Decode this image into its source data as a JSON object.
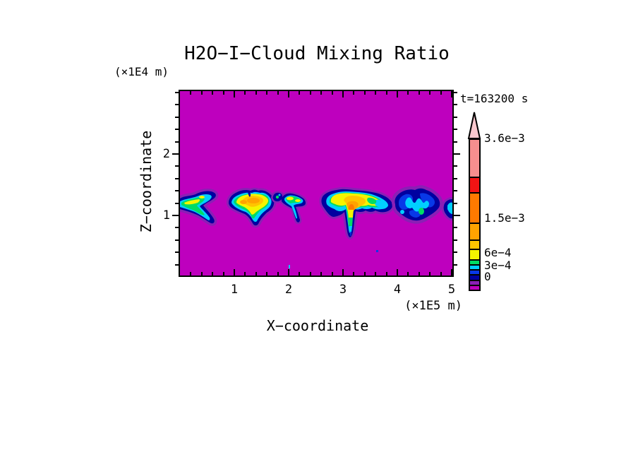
{
  "title": "H2O−I−Cloud Mixing Ratio",
  "timestamp": "t=163200 s",
  "axes": {
    "x": {
      "label": "X−coordinate",
      "unit": "(×1E5 m)",
      "tick_labels": [
        "1",
        "2",
        "3",
        "4",
        "5"
      ]
    },
    "z": {
      "label": "Z−coordinate",
      "unit": "(×1E4 m)",
      "tick_labels": [
        "1",
        "2"
      ]
    }
  },
  "colorbar": {
    "tick_labels": [
      "3.6e−3",
      "1.5e−3",
      "6e−4",
      "3e−4",
      "0"
    ],
    "arrow_color": "#FAC8CE",
    "segments": [
      {
        "color": "#F68E8E",
        "h": 52
      },
      {
        "color": "#F21414",
        "h": 22
      },
      {
        "color": "#FF7A00",
        "h": 43
      },
      {
        "color": "#FFA300",
        "h": 24
      },
      {
        "color": "#FFC400",
        "h": 13
      },
      {
        "color": "#F4F400",
        "h": 15
      },
      {
        "color": "#00DC64",
        "h": 7
      },
      {
        "color": "#00CFFF",
        "h": 7
      },
      {
        "color": "#0838E8",
        "h": 7
      },
      {
        "color": "#0000A0",
        "h": 8
      },
      {
        "color": "#8A1FB5",
        "h": 7
      },
      {
        "color": "#BE00BE",
        "h": 7
      }
    ]
  },
  "chart_data": {
    "type": "heatmap",
    "title": "H2O−I−Cloud Mixing Ratio",
    "time_annotation": "t=163200 s",
    "xlabel": "X−coordinate",
    "x_unit": "(×1E5 m)",
    "ylabel": "Z−coordinate",
    "y_unit": "(×1E4 m)",
    "xlim": [
      0,
      5.05
    ],
    "ylim": [
      0,
      3.0
    ],
    "x_major_ticks": [
      1,
      2,
      3,
      4,
      5
    ],
    "y_major_ticks": [
      1,
      2
    ],
    "minor_tick_step": 0.2,
    "grid": false,
    "legend_position": "right-colorbar-with-overflow-arrow",
    "background_color": "#BE00BE",
    "background_value": 0,
    "colorbar_tick_labels": [
      "3.6e−3",
      "1.5e−3",
      "6e−4",
      "3e−4",
      "0"
    ],
    "clouds": [
      {
        "x_range": [
          0.0,
          0.75
        ],
        "z_range": [
          0.95,
          1.55
        ],
        "peak_mixing_ratio": "~7e−4",
        "description": "left-edge chevron-shaped cloud, cyan-green body with thin yellow streak"
      },
      {
        "x_range": [
          0.85,
          1.75
        ],
        "z_range": [
          0.9,
          1.6
        ],
        "peak_mixing_ratio": "~1.2e−3",
        "description": "rounded cloud, yellow interior with amber-orange core, drooping base"
      },
      {
        "x_range": [
          1.75,
          2.32
        ],
        "z_range": [
          1.0,
          1.55
        ],
        "peak_mixing_ratio": "~7e−4",
        "description": "thin wavy cloud with small downward hook"
      },
      {
        "x_range": [
          2.6,
          3.95
        ],
        "z_range": [
          0.65,
          1.6
        ],
        "peak_mixing_ratio": "~1.8e−3",
        "description": "largest cloud, yellow with dark-orange core and long narrow fallstreak near x=3.15"
      },
      {
        "x_range": [
          3.95,
          4.85
        ],
        "z_range": [
          0.95,
          1.6
        ],
        "peak_mixing_ratio": "~4e−4",
        "description": "dissipating navy-blue cloud with cyan patches and a small green spot"
      },
      {
        "x_range": [
          4.88,
          5.05
        ],
        "z_range": [
          1.05,
          1.45
        ],
        "peak_mixing_ratio": "~3e−4",
        "description": "small navy-cyan cloud clipped by right plot edge"
      }
    ]
  }
}
